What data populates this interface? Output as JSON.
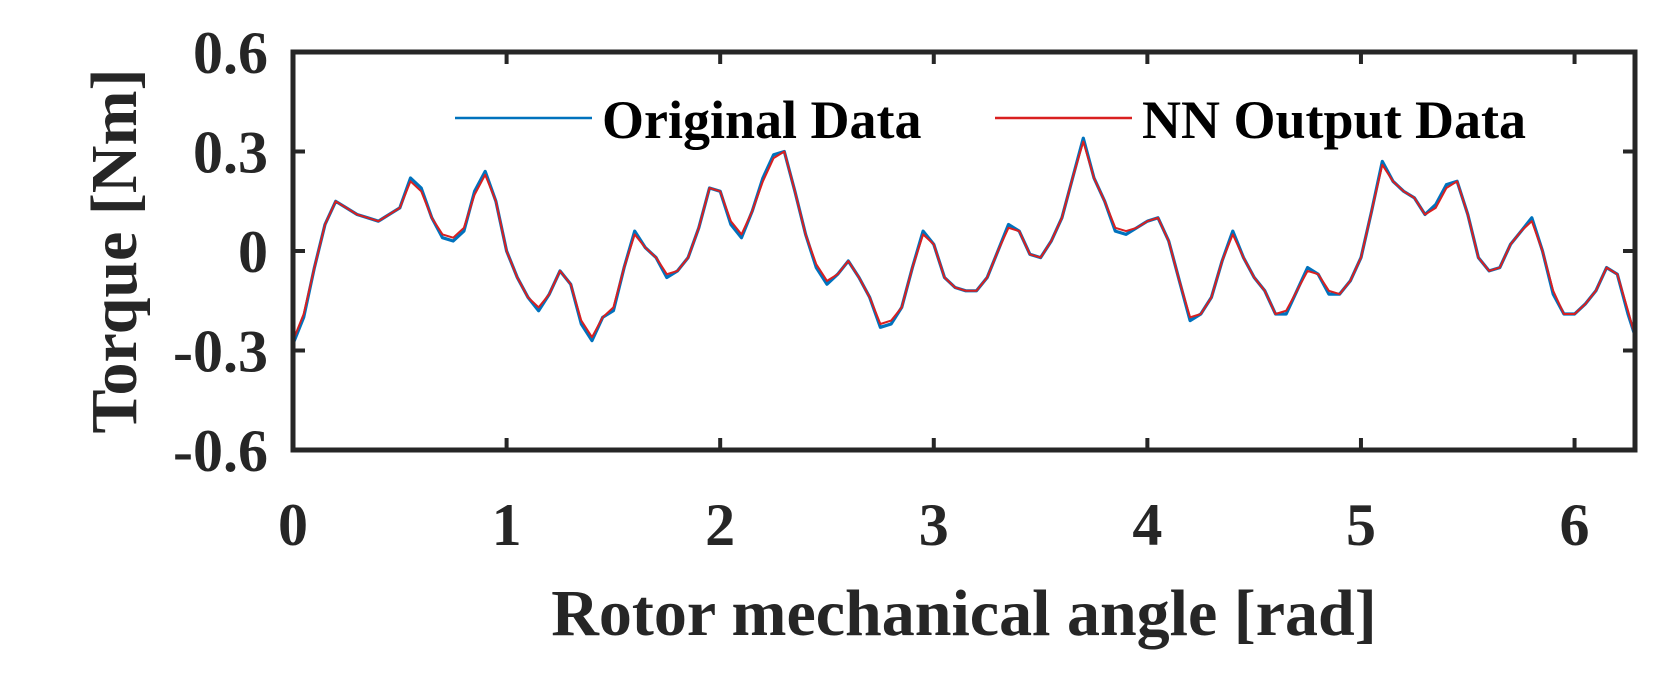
{
  "chart_data": {
    "type": "line",
    "title": "",
    "xlabel": "Rotor mechanical angle [rad]",
    "ylabel": "Torque [Nm]",
    "xlim": [
      0,
      6.283
    ],
    "ylim": [
      -0.6,
      0.6
    ],
    "xticks": [
      0,
      1,
      2,
      3,
      4,
      5,
      6
    ],
    "xtick_labels": [
      "0",
      "1",
      "2",
      "3",
      "4",
      "5",
      "6"
    ],
    "yticks": [
      -0.6,
      -0.3,
      0,
      0.3,
      0.6
    ],
    "ytick_labels": [
      "-0.6",
      "-0.3",
      "0",
      "0.3",
      "0.6"
    ],
    "grid": false,
    "legend_position": "top-right",
    "legend_orientation": "horizontal",
    "x": [
      0,
      0.05,
      0.1,
      0.15,
      0.2,
      0.25,
      0.3,
      0.35,
      0.4,
      0.45,
      0.5,
      0.55,
      0.6,
      0.65,
      0.7,
      0.75,
      0.8,
      0.85,
      0.9,
      0.95,
      1.0,
      1.05,
      1.1,
      1.15,
      1.2,
      1.25,
      1.3,
      1.35,
      1.4,
      1.45,
      1.5,
      1.55,
      1.6,
      1.65,
      1.7,
      1.75,
      1.8,
      1.85,
      1.9,
      1.95,
      2.0,
      2.05,
      2.1,
      2.15,
      2.2,
      2.25,
      2.3,
      2.35,
      2.4,
      2.45,
      2.5,
      2.55,
      2.6,
      2.65,
      2.7,
      2.75,
      2.8,
      2.85,
      2.9,
      2.95,
      3.0,
      3.05,
      3.1,
      3.15,
      3.2,
      3.25,
      3.3,
      3.35,
      3.4,
      3.45,
      3.5,
      3.55,
      3.6,
      3.65,
      3.7,
      3.75,
      3.8,
      3.85,
      3.9,
      3.95,
      4.0,
      4.05,
      4.1,
      4.15,
      4.2,
      4.25,
      4.3,
      4.35,
      4.4,
      4.45,
      4.5,
      4.55,
      4.6,
      4.65,
      4.7,
      4.75,
      4.8,
      4.85,
      4.9,
      4.95,
      5.0,
      5.05,
      5.1,
      5.15,
      5.2,
      5.25,
      5.3,
      5.35,
      5.4,
      5.45,
      5.5,
      5.55,
      5.6,
      5.65,
      5.7,
      5.75,
      5.8,
      5.85,
      5.9,
      5.95,
      6.0,
      6.05,
      6.1,
      6.15,
      6.2,
      6.25,
      6.28
    ],
    "series": [
      {
        "name": "Original Data",
        "color": "#0072BD",
        "values": [
          -0.28,
          -0.2,
          -0.05,
          0.08,
          0.15,
          0.13,
          0.11,
          0.1,
          0.09,
          0.11,
          0.13,
          0.22,
          0.19,
          0.1,
          0.04,
          0.03,
          0.06,
          0.18,
          0.24,
          0.15,
          0.0,
          -0.08,
          -0.14,
          -0.18,
          -0.13,
          -0.06,
          -0.1,
          -0.22,
          -0.27,
          -0.2,
          -0.18,
          -0.05,
          0.06,
          0.01,
          -0.02,
          -0.08,
          -0.06,
          -0.02,
          0.07,
          0.19,
          0.18,
          0.08,
          0.04,
          0.12,
          0.22,
          0.29,
          0.3,
          0.18,
          0.05,
          -0.05,
          -0.1,
          -0.07,
          -0.03,
          -0.08,
          -0.14,
          -0.23,
          -0.22,
          -0.17,
          -0.05,
          0.06,
          0.02,
          -0.08,
          -0.11,
          -0.12,
          -0.12,
          -0.08,
          0.0,
          0.08,
          0.06,
          -0.01,
          -0.02,
          0.03,
          0.1,
          0.22,
          0.34,
          0.22,
          0.15,
          0.06,
          0.05,
          0.07,
          0.09,
          0.1,
          0.03,
          -0.09,
          -0.21,
          -0.19,
          -0.14,
          -0.03,
          0.06,
          -0.02,
          -0.08,
          -0.12,
          -0.19,
          -0.19,
          -0.12,
          -0.05,
          -0.07,
          -0.13,
          -0.13,
          -0.09,
          -0.02,
          0.12,
          0.27,
          0.21,
          0.18,
          0.16,
          0.11,
          0.14,
          0.2,
          0.21,
          0.11,
          -0.02,
          -0.06,
          -0.05,
          0.02,
          0.06,
          0.1,
          0.0,
          -0.13,
          -0.19,
          -0.19,
          -0.16,
          -0.12,
          -0.05,
          -0.07,
          -0.19,
          -0.25
        ]
      },
      {
        "name": "NN Output Data",
        "color": "#D92020",
        "values": [
          -0.27,
          -0.19,
          -0.05,
          0.08,
          0.15,
          0.13,
          0.11,
          0.1,
          0.09,
          0.11,
          0.13,
          0.21,
          0.18,
          0.1,
          0.05,
          0.04,
          0.07,
          0.17,
          0.23,
          0.15,
          0.0,
          -0.08,
          -0.14,
          -0.17,
          -0.13,
          -0.06,
          -0.1,
          -0.21,
          -0.26,
          -0.2,
          -0.17,
          -0.05,
          0.05,
          0.01,
          -0.02,
          -0.07,
          -0.06,
          -0.02,
          0.07,
          0.19,
          0.18,
          0.09,
          0.05,
          0.12,
          0.21,
          0.28,
          0.3,
          0.18,
          0.05,
          -0.04,
          -0.09,
          -0.07,
          -0.03,
          -0.08,
          -0.14,
          -0.22,
          -0.21,
          -0.17,
          -0.05,
          0.05,
          0.02,
          -0.08,
          -0.11,
          -0.12,
          -0.12,
          -0.08,
          0.0,
          0.07,
          0.06,
          -0.01,
          -0.02,
          0.03,
          0.1,
          0.22,
          0.33,
          0.22,
          0.15,
          0.07,
          0.06,
          0.07,
          0.09,
          0.1,
          0.03,
          -0.09,
          -0.2,
          -0.19,
          -0.14,
          -0.03,
          0.05,
          -0.02,
          -0.08,
          -0.12,
          -0.19,
          -0.18,
          -0.12,
          -0.06,
          -0.07,
          -0.12,
          -0.13,
          -0.09,
          -0.02,
          0.12,
          0.26,
          0.21,
          0.18,
          0.16,
          0.11,
          0.13,
          0.19,
          0.21,
          0.11,
          -0.02,
          -0.06,
          -0.05,
          0.02,
          0.06,
          0.09,
          0.0,
          -0.12,
          -0.19,
          -0.19,
          -0.16,
          -0.12,
          -0.05,
          -0.07,
          -0.18,
          -0.25
        ]
      }
    ]
  }
}
